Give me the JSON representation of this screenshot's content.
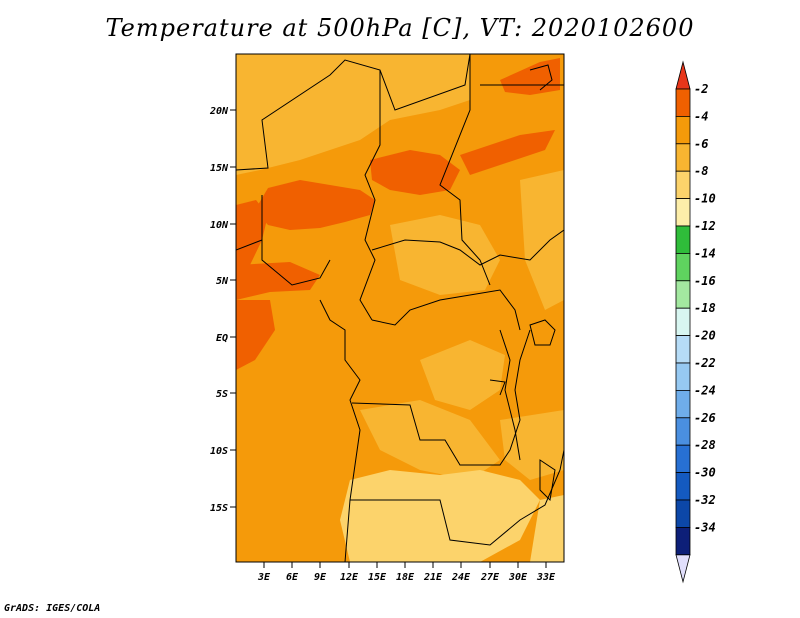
{
  "title": "Temperature at 500hPa [C], VT: 2020102600",
  "credit": "GrADS: IGES/COLA",
  "map": {
    "lat_labels": [
      "20N",
      "15N",
      "10N",
      "5N",
      "EQ",
      "5S",
      "10S",
      "15S"
    ],
    "lon_labels": [
      "3E",
      "6E",
      "9E",
      "12E",
      "15E",
      "18E",
      "21E",
      "24E",
      "27E",
      "30E",
      "33E"
    ]
  },
  "colorbar": {
    "labels": [
      "-2",
      "-4",
      "-6",
      "-8",
      "-10",
      "-12",
      "-14",
      "-16",
      "-18",
      "-20",
      "-22",
      "-24",
      "-26",
      "-28",
      "-30",
      "-32",
      "-34"
    ],
    "colors": [
      "#e8361a",
      "#f06000",
      "#f59a0a",
      "#f8b531",
      "#fcd36b",
      "#fdeea9",
      "#2fbd3a",
      "#5fd35f",
      "#a3e8a0",
      "#d8f6f1",
      "#b6dcf7",
      "#96c9f2",
      "#6fadea",
      "#4a8fe0",
      "#2770d3",
      "#145ac0",
      "#0c47a8",
      "#0d1f78",
      "#e1dffc"
    ]
  }
}
